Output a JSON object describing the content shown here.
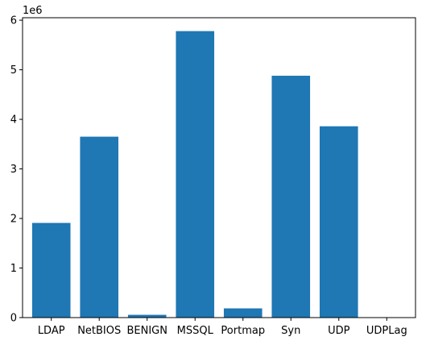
{
  "chart_data": {
    "type": "bar",
    "title": "",
    "xlabel": "",
    "ylabel": "",
    "y_offset_text": "1e6",
    "y_scale": 1000000,
    "categories": [
      "LDAP",
      "NetBIOS",
      "BENIGN",
      "MSSQL",
      "Portmap",
      "Syn",
      "UDP",
      "UDPLag"
    ],
    "values": [
      1910000,
      3650000,
      56000,
      5780000,
      186000,
      4880000,
      3860000,
      3000
    ],
    "ylim": [
      0,
      6050000
    ],
    "yticks": [
      0,
      1000000,
      2000000,
      3000000,
      4000000,
      5000000,
      6000000
    ],
    "ytick_labels": [
      "0",
      "1",
      "2",
      "3",
      "4",
      "5",
      "6"
    ],
    "grid": false,
    "legend": "none",
    "bar_color": "#1f77b4"
  }
}
